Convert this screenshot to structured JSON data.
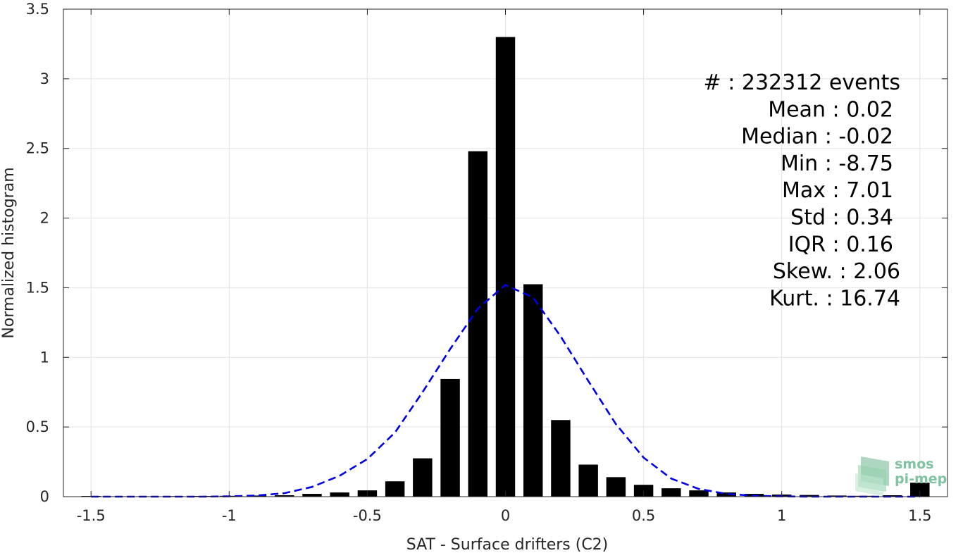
{
  "chart_data": {
    "type": "bar",
    "xlabel": "SAT - Surface drifters (C2)",
    "ylabel": "Normalized histogram",
    "xlim": [
      -1.6,
      1.6
    ],
    "ylim": [
      0,
      3.5
    ],
    "xticks": [
      -1.5,
      -1,
      -0.5,
      0,
      0.5,
      1,
      1.5
    ],
    "xtick_labels": [
      "-1.5",
      "-1",
      "-0.5",
      "0",
      "0.5",
      "1",
      "1.5"
    ],
    "yticks": [
      0,
      0.5,
      1,
      1.5,
      2,
      2.5,
      3,
      3.5
    ],
    "ytick_labels": [
      "0",
      "0.5",
      "1",
      "1.5",
      "2",
      "2.5",
      "3",
      "3.5"
    ],
    "grid": true,
    "bar_color": "#000000",
    "bar_width": 0.07,
    "bars": {
      "x": [
        -1.5,
        -1.4,
        -1.3,
        -1.2,
        -1.1,
        -1.0,
        -0.9,
        -0.8,
        -0.7,
        -0.6,
        -0.5,
        -0.4,
        -0.3,
        -0.2,
        -0.1,
        0.0,
        0.1,
        0.2,
        0.3,
        0.4,
        0.5,
        0.6,
        0.7,
        0.8,
        0.9,
        1.0,
        1.1,
        1.2,
        1.3,
        1.4,
        1.5
      ],
      "values": [
        0.005,
        0.003,
        0.003,
        0.004,
        0.005,
        0.006,
        0.008,
        0.01,
        0.02,
        0.03,
        0.045,
        0.11,
        0.275,
        0.845,
        2.48,
        3.3,
        1.525,
        0.55,
        0.23,
        0.14,
        0.085,
        0.06,
        0.045,
        0.03,
        0.02,
        0.015,
        0.012,
        0.008,
        0.006,
        0.01,
        0.1
      ]
    },
    "fit_curve": {
      "style": "dashed",
      "color": "#0000e6",
      "x": [
        -1.5,
        -1.4,
        -1.3,
        -1.2,
        -1.1,
        -1.0,
        -0.9,
        -0.8,
        -0.7,
        -0.6,
        -0.5,
        -0.4,
        -0.3,
        -0.2,
        -0.1,
        0.0,
        0.1,
        0.2,
        0.3,
        0.4,
        0.5,
        0.6,
        0.7,
        0.8,
        0.9,
        1.0,
        1.1,
        1.2,
        1.3,
        1.4,
        1.5
      ],
      "y": [
        0.0,
        0.0,
        0.0,
        0.0,
        0.0,
        0.002,
        0.008,
        0.025,
        0.07,
        0.15,
        0.27,
        0.46,
        0.75,
        1.06,
        1.35,
        1.52,
        1.43,
        1.15,
        0.83,
        0.52,
        0.28,
        0.13,
        0.055,
        0.02,
        0.006,
        0.002,
        0.0,
        0.0,
        0.0,
        0.0,
        0.0
      ]
    },
    "stats": [
      {
        "label": "#  : 232312 events"
      },
      {
        "label": "Mean : 0.02"
      },
      {
        "label": "Median : -0.02"
      },
      {
        "label": "Min : -8.75"
      },
      {
        "label": "Max : 7.01"
      },
      {
        "label": "Std : 0.34"
      },
      {
        "label": "IQR : 0.16"
      },
      {
        "label": "Skew. : 2.06"
      },
      {
        "label": "Kurt. : 16.74"
      }
    ]
  },
  "logo": {
    "line1": "smos",
    "line2": "pi-mep",
    "color": "#7fc3a0"
  }
}
